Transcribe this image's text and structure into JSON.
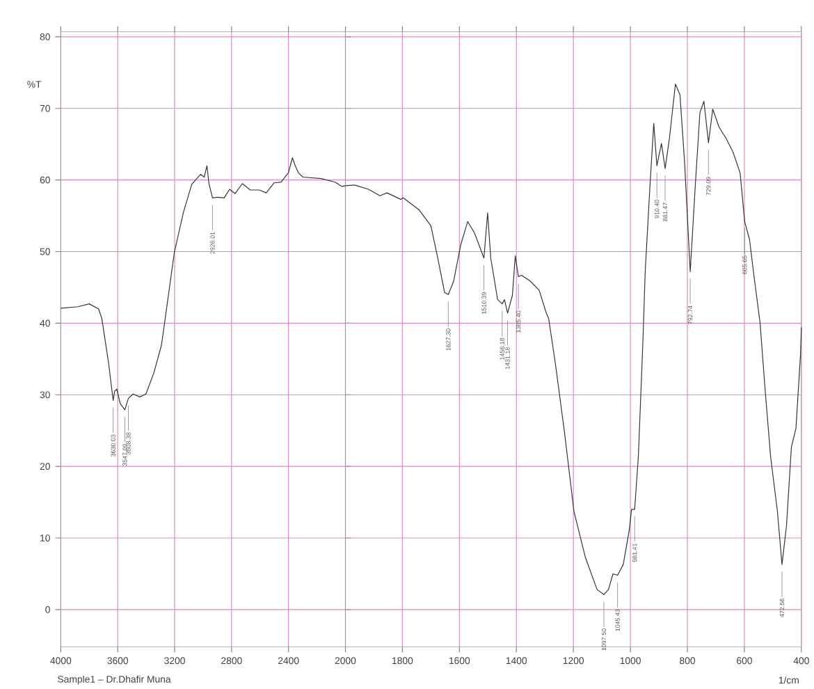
{
  "chart_data": [
    {
      "type": "line",
      "ylabel": "%T",
      "x": [
        4000,
        3880,
        3800,
        3735,
        3712,
        3664,
        3632,
        3622,
        3606,
        3583,
        3550,
        3525,
        3492,
        3444,
        3402,
        3347,
        3293,
        3266,
        3202,
        3138,
        3080,
        3017,
        2992,
        2973,
        2959,
        2934,
        2895,
        2852,
        2814,
        2775,
        2724,
        2669,
        2605,
        2556,
        2501,
        2452,
        2401,
        2372,
        2353,
        2330,
        2298,
        2169,
        2072,
        2024,
        2000
      ],
      "series": [
        {
          "color": "#333333",
          "values": [
            42.1,
            42.3,
            42.7,
            42.0,
            40.7,
            34.4,
            29.2,
            30.5,
            30.8,
            28.8,
            27.9,
            29.5,
            30.1,
            29.7,
            30.1,
            33.0,
            36.9,
            40.7,
            49.9,
            55.5,
            59.4,
            60.8,
            60.4,
            62.0,
            59.5,
            57.5,
            57.6,
            57.5,
            58.7,
            58.1,
            59.5,
            58.6,
            58.6,
            58.2,
            59.6,
            59.7,
            61.0,
            63.1,
            62.0,
            61.0,
            60.4,
            60.2,
            59.7,
            59.1,
            59.2
          ]
        }
      ],
      "xlim": [
        4000,
        2000
      ],
      "ylim": [
        -5.2,
        80.7
      ],
      "xticks": [
        4000,
        3600,
        3200,
        2800,
        2400,
        2000
      ],
      "yticks": [
        0,
        10,
        20,
        30,
        40,
        50,
        60,
        70,
        80
      ],
      "grid": true,
      "line_style": "solid",
      "marker": "none",
      "annotations": [
        {
          "text": "3630.03",
          "x": 3632,
          "y": 29.2
        },
        {
          "text": "3547.09",
          "x": 3550,
          "y": 27.9
        },
        {
          "text": "3508.38",
          "x": 3525,
          "y": 29.5
        },
        {
          "text": "2926.01",
          "x": 2934,
          "y": 57.5
        },
        "Sample1 – Dr.Dhafir Muna"
      ]
    },
    {
      "type": "line",
      "xlabel": "1/cm",
      "x": [
        2000,
        1967,
        1919,
        1879,
        1854,
        1806,
        1797,
        1741,
        1700,
        1676,
        1652,
        1639,
        1620,
        1595,
        1571,
        1547,
        1514,
        1501,
        1490,
        1466,
        1450,
        1442,
        1431,
        1414,
        1404,
        1393,
        1382,
        1352,
        1320,
        1295,
        1287,
        1263,
        1231,
        1198,
        1158,
        1117,
        1093,
        1077,
        1061,
        1045,
        1025,
        1004,
        996,
        985,
        972,
        956,
        948,
        931,
        918,
        907,
        891,
        878,
        863,
        842,
        826,
        810,
        790,
        772,
        756,
        742,
        726,
        711,
        689,
        664,
        640,
        615,
        599,
        582,
        566,
        545,
        528,
        508,
        484,
        468,
        452,
        435,
        419,
        403,
        400
      ],
      "series": [
        {
          "color": "#333333",
          "values": [
            59.2,
            59.3,
            58.7,
            57.8,
            58.2,
            57.3,
            57.5,
            55.8,
            53.6,
            49.1,
            44.3,
            44.0,
            45.9,
            51.0,
            54.2,
            52.6,
            49.1,
            55.4,
            49.1,
            43.3,
            42.7,
            43.3,
            41.4,
            43.9,
            49.4,
            46.5,
            46.7,
            45.9,
            44.6,
            41.4,
            40.7,
            34.3,
            24.7,
            13.7,
            7.3,
            2.8,
            2.1,
            2.8,
            5.0,
            4.8,
            6.3,
            11.1,
            14.0,
            14.0,
            21.4,
            37.5,
            47.2,
            59.4,
            67.9,
            62.0,
            65.1,
            61.6,
            65.8,
            73.4,
            71.9,
            62.6,
            47.2,
            59.4,
            69.4,
            71.0,
            65.2,
            69.9,
            67.4,
            65.8,
            63.9,
            61.0,
            54.2,
            51.7,
            46.5,
            40.1,
            31.1,
            21.4,
            13.7,
            6.3,
            11.8,
            22.7,
            25.3,
            35.6,
            39.4
          ]
        }
      ],
      "xlim": [
        2000,
        400
      ],
      "ylim": [
        -5.2,
        80.7
      ],
      "xticks": [
        1800,
        1600,
        1400,
        1200,
        1000,
        800,
        600,
        400
      ],
      "yticks": [
        0,
        10,
        20,
        30,
        40,
        50,
        60,
        70,
        80
      ],
      "tick_labels": "x",
      "grid": true,
      "line_style": "solid",
      "marker": "none",
      "annotations": [
        {
          "text": "1627.30",
          "x": 1639,
          "y": 44.0
        },
        {
          "text": "1510.39",
          "x": 1514,
          "y": 49.1
        },
        {
          "text": "1456.18",
          "x": 1450,
          "y": 42.7
        },
        {
          "text": "1431.18",
          "x": 1431,
          "y": 41.4
        },
        {
          "text": "1385.40",
          "x": 1393,
          "y": 46.5
        },
        {
          "text": "1097.50",
          "x": 1093,
          "y": 2.1
        },
        {
          "text": "1045.43",
          "x": 1045,
          "y": 4.8
        },
        {
          "text": "981.41",
          "x": 985,
          "y": 14.0
        },
        {
          "text": "910.40",
          "x": 907,
          "y": 62.0
        },
        {
          "text": "881.47",
          "x": 878,
          "y": 61.6
        },
        {
          "text": "792.74",
          "x": 790,
          "y": 47.2
        },
        {
          "text": "729.09",
          "x": 726,
          "y": 65.2
        },
        {
          "text": "605.65",
          "x": 599,
          "y": 54.2
        },
        {
          "text": "472.56",
          "x": 468,
          "y": 6.3
        }
      ]
    }
  ]
}
